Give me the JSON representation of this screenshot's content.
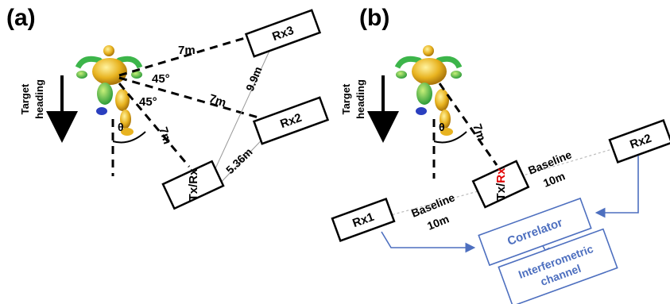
{
  "panels": {
    "a": {
      "label": "(a)",
      "heading_label_1": "Target",
      "heading_label_2": "heading",
      "rx3": "Rx3",
      "rx2": "Rx2",
      "txrx": "Tx/Rx",
      "dist_rx3": "7m",
      "dist_rx2": "7m",
      "dist_txrx": "7m",
      "dist_rx3_rx2": "9.9m",
      "dist_rx2_txrx": "5.36m",
      "angle_upper": "45°",
      "angle_lower": "45°",
      "theta": "θ"
    },
    "b": {
      "label": "(b)",
      "heading_label_1": "Target",
      "heading_label_2": "heading",
      "rx1": "Rx1",
      "rx2": "Rx2",
      "txrx_tx": "Tx/",
      "txrx_rx": "Rx",
      "dist_txrx": "7m",
      "theta": "θ",
      "baseline_right_1": "Baseline",
      "baseline_right_2": "10m",
      "baseline_left_1": "Baseline",
      "baseline_left_2": "10m",
      "correlator": "Correlator",
      "interferometric_1": "Interferometric",
      "interferometric_2": "channel"
    }
  },
  "colors": {
    "rx_highlight": "#e00000",
    "signal_path": "#4d6fbf",
    "figure_body": "#e8b320",
    "figure_limbs": "#3cb54a",
    "figure_feet": "#2a3fbf"
  }
}
